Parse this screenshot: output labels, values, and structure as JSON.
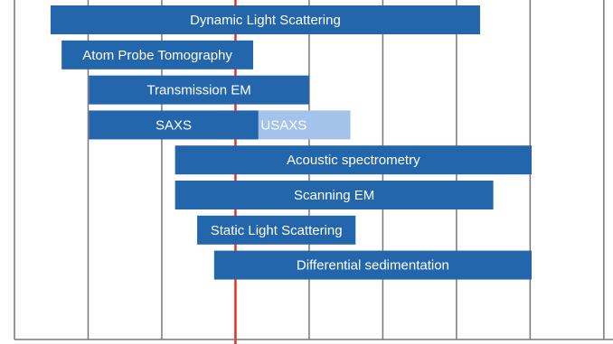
{
  "chart_data": {
    "type": "range-bar",
    "xlim": [
      0,
      8.1
    ],
    "xticks": [
      0,
      1,
      2,
      3,
      4,
      5,
      6,
      7,
      8
    ],
    "grid": true,
    "reference_line": {
      "value": 3,
      "color": "#e8301c"
    },
    "rows": [
      {
        "segments": [
          {
            "label": "Dynamic Light Scattering",
            "start": 0.49,
            "end": 6.32,
            "color": "#2466ab"
          }
        ]
      },
      {
        "segments": [
          {
            "label": "Atom Probe Tomography",
            "start": 0.64,
            "end": 3.24,
            "color": "#2466ab"
          }
        ]
      },
      {
        "segments": [
          {
            "label": "Transmission EM",
            "start": 1.01,
            "end": 4.0,
            "color": "#2466ab"
          }
        ]
      },
      {
        "segments": [
          {
            "label": "USAXS",
            "start": 2.75,
            "end": 4.56,
            "color": "#a3c3ea"
          },
          {
            "label": "SAXS",
            "start": 1.01,
            "end": 3.31,
            "color": "#2466ab"
          }
        ]
      },
      {
        "segments": [
          {
            "label": "Acoustic spectrometry",
            "start": 2.18,
            "end": 7.02,
            "color": "#2466ab"
          }
        ]
      },
      {
        "segments": [
          {
            "label": "Scanning EM",
            "start": 2.18,
            "end": 6.5,
            "color": "#2466ab"
          }
        ]
      },
      {
        "segments": [
          {
            "label": "Static Light Scattering",
            "start": 2.48,
            "end": 4.63,
            "color": "#2466ab"
          }
        ]
      },
      {
        "segments": [
          {
            "label": "Differential sedimentation",
            "start": 2.71,
            "end": 7.02,
            "color": "#2466ab"
          }
        ]
      }
    ]
  }
}
